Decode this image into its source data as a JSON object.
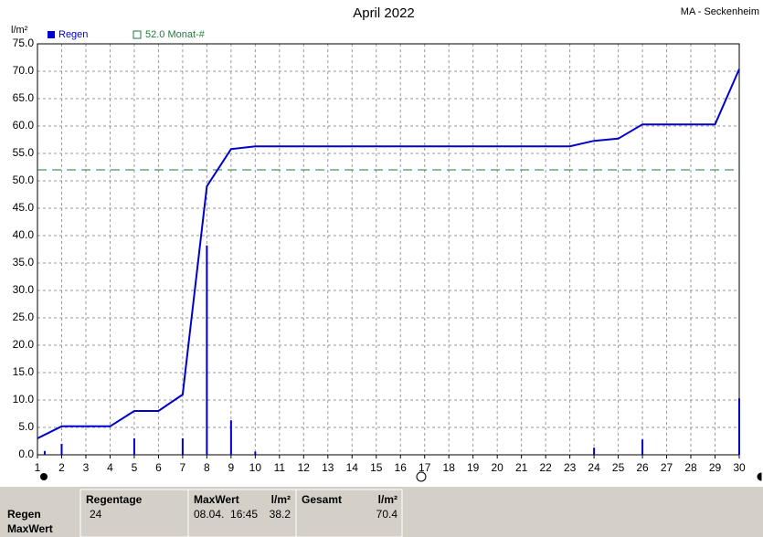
{
  "chart_data": {
    "type": "rain-month",
    "title": "April 2022",
    "station": "MA - Seckenheim",
    "y_label": "l/m²",
    "xlim": [
      1,
      30
    ],
    "ylim": [
      0,
      75
    ],
    "xticks": [
      1,
      2,
      3,
      4,
      5,
      6,
      7,
      8,
      9,
      10,
      11,
      12,
      13,
      14,
      15,
      16,
      17,
      18,
      19,
      20,
      21,
      22,
      23,
      24,
      25,
      26,
      27,
      28,
      29,
      30
    ],
    "yticks": [
      {
        "value": 0,
        "label": "0.0"
      },
      {
        "value": 5,
        "label": "5.0"
      },
      {
        "value": 10,
        "label": "10.0"
      },
      {
        "value": 15,
        "label": "15.0"
      },
      {
        "value": 20,
        "label": "20.0"
      },
      {
        "value": 25,
        "label": "25.0"
      },
      {
        "value": 30,
        "label": "30.0"
      },
      {
        "value": 35,
        "label": "35.0"
      },
      {
        "value": 40,
        "label": "40.0"
      },
      {
        "value": 45,
        "label": "45.0"
      },
      {
        "value": 50,
        "label": "50.0"
      },
      {
        "value": 55,
        "label": "55.0"
      },
      {
        "value": 60,
        "label": "60.0"
      },
      {
        "value": 65,
        "label": "65.0"
      },
      {
        "value": 70,
        "label": "70.0"
      },
      {
        "value": 75,
        "label": "75.0"
      }
    ],
    "grid": true,
    "series": [
      {
        "name": "Regen",
        "color": "#0000cc",
        "style": "bars",
        "x": [
          1.3,
          2,
          5,
          7,
          8,
          9,
          10,
          24,
          26,
          30
        ],
        "values": [
          0.7,
          2.0,
          3.0,
          3.0,
          38.2,
          6.3,
          0.6,
          1.3,
          2.8,
          10.3
        ]
      },
      {
        "color": "#0000cc",
        "style": "line",
        "x": [
          1,
          2,
          4,
          5,
          6,
          7,
          8,
          9,
          10,
          23,
          24,
          25,
          26,
          29,
          30
        ],
        "values": [
          3.0,
          5.2,
          5.2,
          8.0,
          8.0,
          11.0,
          49.0,
          55.8,
          56.3,
          56.3,
          57.3,
          57.7,
          60.3,
          60.3,
          70.4
        ]
      }
    ],
    "reference": {
      "value": 52,
      "label": "52.0 Monat-#",
      "color": "#1f7a3a"
    }
  },
  "stats_table": {
    "row_labels": [
      "Regen",
      "MaxWert"
    ],
    "regentage": {
      "header": "Regentage",
      "value": 24
    },
    "maxwert": {
      "header": "MaxWert",
      "unit": "l/m²",
      "time": "08.04.  16:45",
      "value": 38.2
    },
    "gesamt": {
      "header": "Gesamt",
      "unit": "l/m²",
      "value": 70.4
    }
  }
}
